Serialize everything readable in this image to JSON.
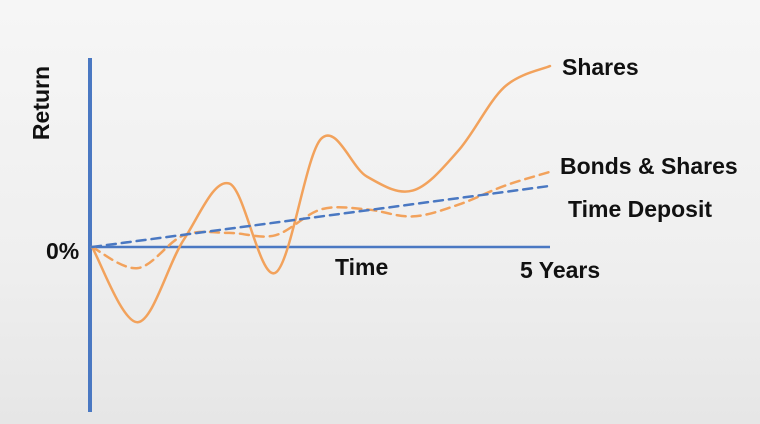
{
  "chart_data": {
    "type": "line",
    "ylabel": "Return",
    "xlabel": "Time",
    "x_end_label": "5 Years",
    "zero_label": "0%",
    "x": [
      0,
      0.5,
      1,
      1.5,
      2,
      2.5,
      3,
      3.5,
      4,
      4.5,
      5
    ],
    "series": [
      {
        "name": "Shares",
        "style": "solid",
        "color": "#f2a25c",
        "values": [
          0,
          -32,
          3,
          27,
          -11,
          46,
          30,
          24,
          41,
          68,
          77
        ]
      },
      {
        "name": "Bonds & Shares",
        "style": "dashed",
        "color": "#f2a25c",
        "values": [
          0,
          -9,
          5,
          6,
          5,
          16,
          16,
          13,
          18,
          26,
          32
        ]
      },
      {
        "name": "Time Deposit",
        "style": "dashed",
        "color": "#4a78c2",
        "values": [
          0,
          2.6,
          5.2,
          7.8,
          10.4,
          13,
          15.6,
          18.2,
          20.8,
          23.4,
          26
        ]
      }
    ]
  }
}
